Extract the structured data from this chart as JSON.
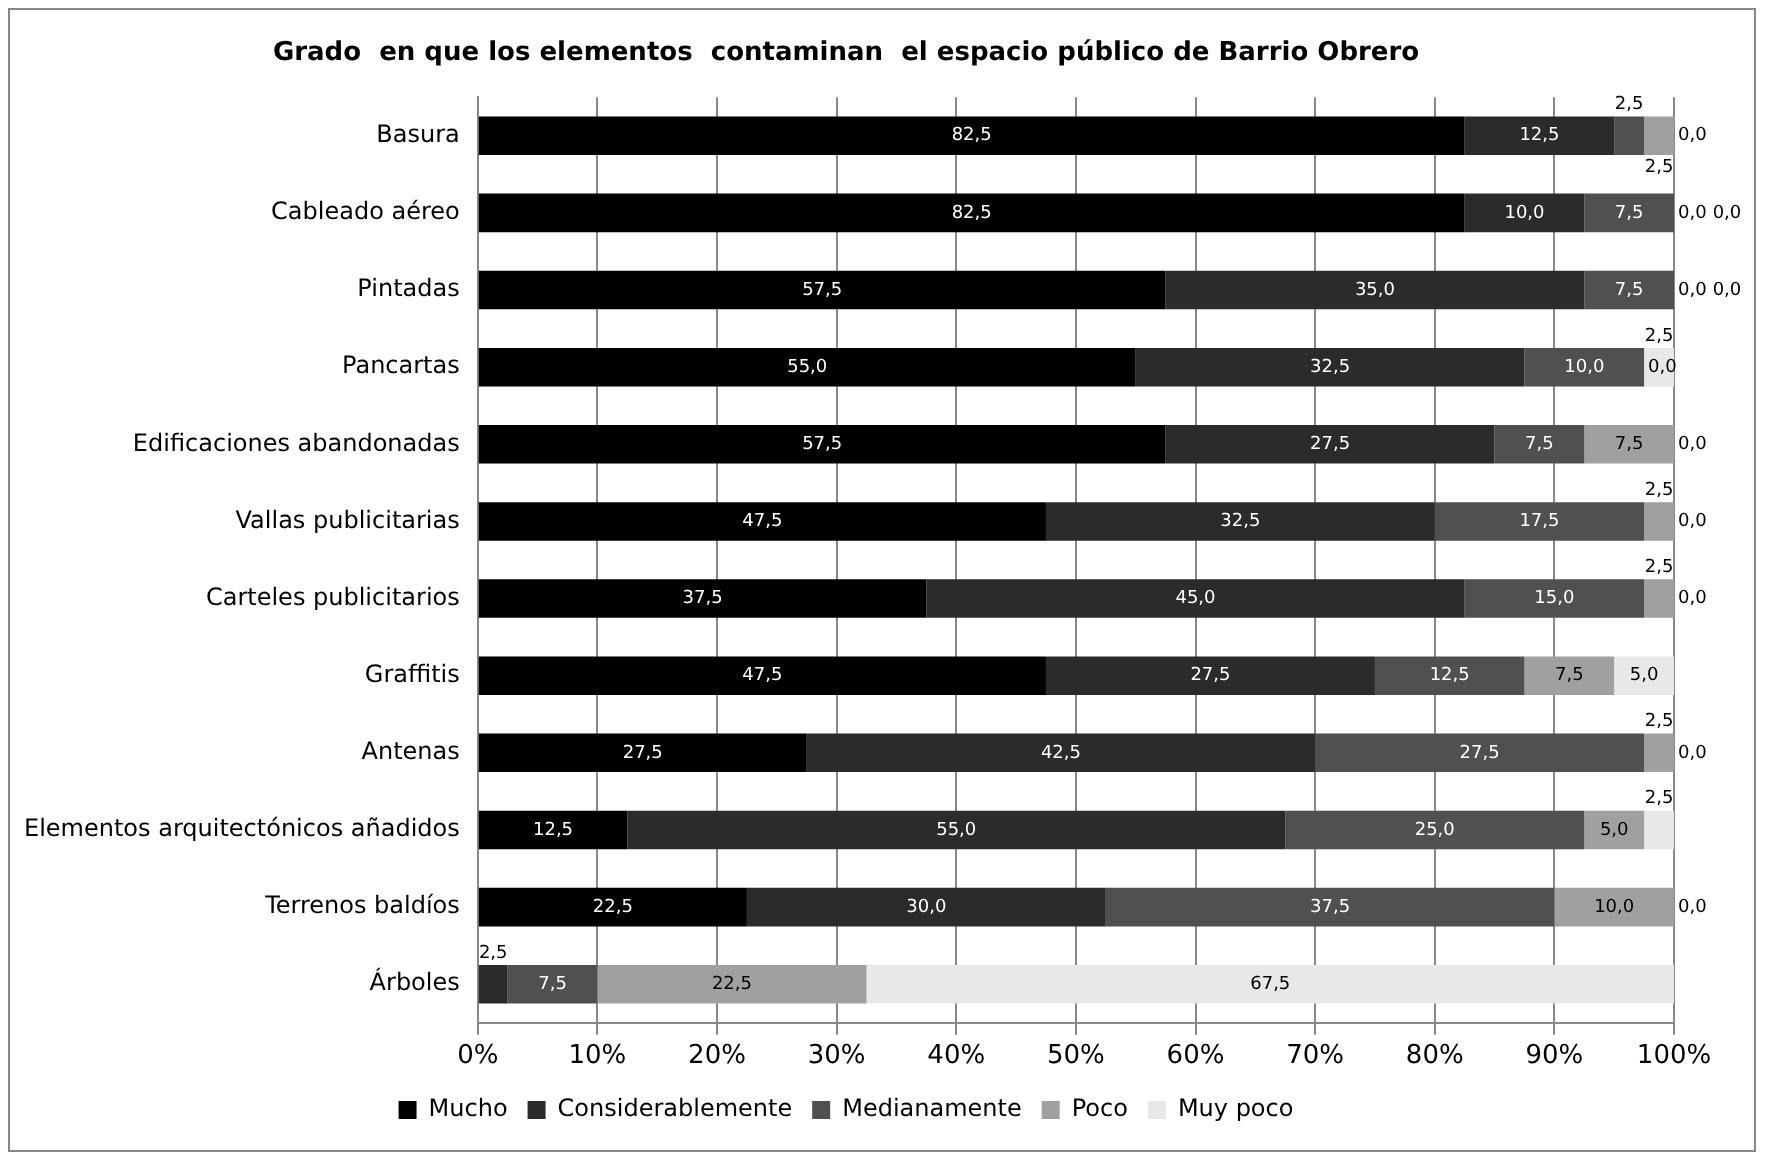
{
  "chart_data": {
    "type": "bar",
    "orientation": "horizontal",
    "stacked": true,
    "title": "Grado  en que los elementos  contaminan  el espacio público de Barrio Obrero",
    "categories": [
      "Basura",
      "Cableado aéreo",
      "Pintadas",
      "Pancartas",
      "Edificaciones abandonadas",
      "Vallas publicitarias",
      "Carteles publicitarios",
      "Graffitis",
      "Antenas",
      "Elementos arquitectónicos añadidos",
      "Terrenos baldíos",
      "Árboles"
    ],
    "series": [
      {
        "name": "Mucho",
        "color": "#000000",
        "values": [
          82.5,
          82.5,
          57.5,
          55.0,
          57.5,
          47.5,
          37.5,
          47.5,
          27.5,
          12.5,
          22.5,
          0.0
        ],
        "value_labels": [
          "82,5",
          "82,5",
          "57,5",
          "55,0",
          "57,5",
          "47,5",
          "37,5",
          "47,5",
          "27,5",
          "12,5",
          "22,5",
          null
        ]
      },
      {
        "name": "Considerablemente",
        "color": "#2b2b2b",
        "values": [
          12.5,
          10.0,
          35.0,
          32.5,
          27.5,
          32.5,
          45.0,
          27.5,
          42.5,
          55.0,
          30.0,
          2.5
        ],
        "value_labels": [
          "12,5",
          "10,0",
          "35,0",
          "32,5",
          "27,5",
          "32,5",
          "45,0",
          "27,5",
          "42,5",
          "55,0",
          "30,0",
          "2,5"
        ]
      },
      {
        "name": "Medianamente",
        "color": "#505050",
        "values": [
          2.5,
          7.5,
          7.5,
          10.0,
          7.5,
          17.5,
          15.0,
          12.5,
          27.5,
          25.0,
          37.5,
          7.5
        ],
        "value_labels": [
          "2,5",
          "7,5",
          "7,5",
          "10,0",
          "7,5",
          "17,5",
          "15,0",
          "12,5",
          "27,5",
          "25,0",
          "37,5",
          "7,5"
        ]
      },
      {
        "name": "Poco",
        "color": "#a0a0a0",
        "values": [
          2.5,
          0.0,
          0.0,
          0.0,
          7.5,
          2.5,
          2.5,
          7.5,
          2.5,
          5.0,
          10.0,
          22.5
        ],
        "value_labels": [
          "2,5",
          "0,0",
          "0,0",
          "0,0",
          "7,5",
          "2,5",
          "2,5",
          "7,5",
          "2,5",
          "5,0",
          "10,0",
          "22,5"
        ]
      },
      {
        "name": "Muy poco",
        "color": "#e8e8e8",
        "values": [
          0.0,
          0.0,
          0.0,
          2.5,
          0.0,
          0.0,
          0.0,
          5.0,
          0.0,
          2.5,
          0.0,
          67.5
        ],
        "value_labels": [
          "0,0",
          "0,0",
          "0,0",
          "2,5",
          "0,0",
          "0,0",
          "0,0",
          "5,0",
          "0,0",
          "2,5",
          "0,0",
          "67,5"
        ]
      }
    ],
    "xlim": [
      0,
      100
    ],
    "xticks": [
      {
        "value": 0,
        "label": "0%"
      },
      {
        "value": 10,
        "label": "10%"
      },
      {
        "value": 20,
        "label": "20%"
      },
      {
        "value": 30,
        "label": "30%"
      },
      {
        "value": 40,
        "label": "40%"
      },
      {
        "value": 50,
        "label": "50%"
      },
      {
        "value": 60,
        "label": "60%"
      },
      {
        "value": 70,
        "label": "70%"
      },
      {
        "value": 80,
        "label": "80%"
      },
      {
        "value": 90,
        "label": "90%"
      },
      {
        "value": 100,
        "label": "100%"
      }
    ],
    "grid": "x",
    "legend": "bottom"
  }
}
